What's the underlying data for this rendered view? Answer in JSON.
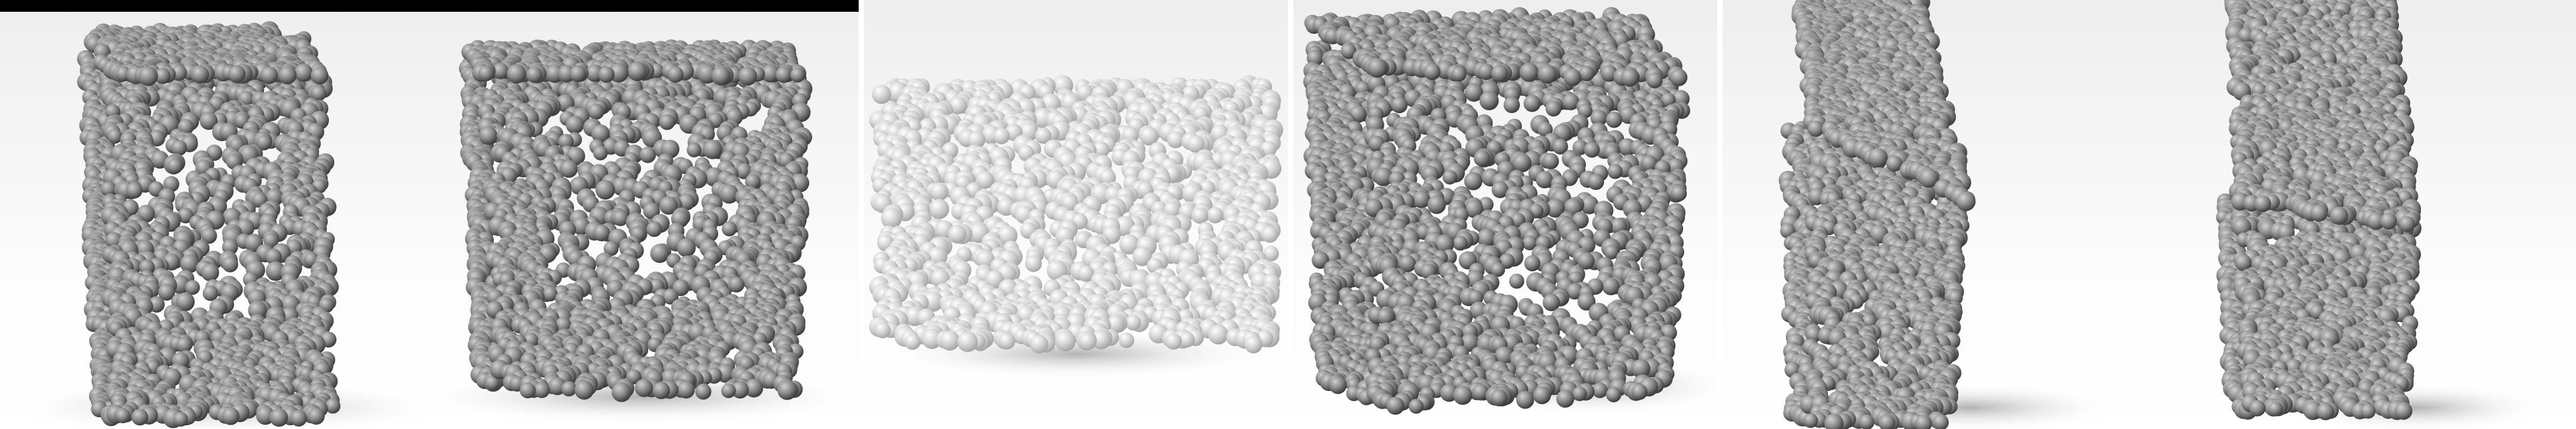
{
  "figure": {
    "panels": [
      {
        "id": "panel-1",
        "scene": "twin-particle-blocks-front"
      },
      {
        "id": "panel-2",
        "scene": "particle-block-top-view"
      },
      {
        "id": "panel-3",
        "scene": "particle-block-perspective"
      },
      {
        "id": "panel-4",
        "scene": "twin-particle-blocks-tilted"
      }
    ],
    "colors": {
      "particle_dark": "#707070",
      "particle_light": "#dedede",
      "background": "#ffffff",
      "floor_shadow": "#b5b5b5",
      "top_bar": "#000000"
    }
  }
}
